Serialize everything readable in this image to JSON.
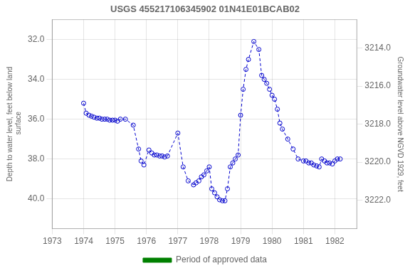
{
  "chart_data": {
    "type": "line",
    "title": "USGS 455217106345902 01N41E01BCAB02",
    "y_label": "Depth to water level, feet below land\n surface",
    "y2_label": "Groundwater level above NGVD 1929, feet",
    "legend": "bottom",
    "legend_label": "Period of approved data",
    "legend_color": "#008000",
    "grid": true,
    "xlim": [
      1973.0,
      1982.7
    ],
    "xticks": [
      1973,
      1974,
      1975,
      1976,
      1977,
      1978,
      1979,
      1980,
      1981,
      1982
    ],
    "ylim": [
      41.5,
      31.0
    ],
    "yticks": [
      {
        "value": 32.0,
        "label": "32.0"
      },
      {
        "value": 34.0,
        "label": "34.0"
      },
      {
        "value": 36.0,
        "label": "36.0"
      },
      {
        "value": 38.0,
        "label": "38.0"
      },
      {
        "value": 40.0,
        "label": "40.0"
      }
    ],
    "y2lim": [
      3223.5,
      3212.5
    ],
    "y2ticks": [
      {
        "value": 3214.0,
        "label": "3214.0"
      },
      {
        "value": 3216.0,
        "label": "3216.0"
      },
      {
        "value": 3218.0,
        "label": "3218.0"
      },
      {
        "value": 3220.0,
        "label": "3220.0"
      },
      {
        "value": 3222.0,
        "label": "3222.0"
      }
    ],
    "x": [
      1974.0,
      1974.08,
      1974.17,
      1974.25,
      1974.33,
      1974.42,
      1974.5,
      1974.58,
      1974.67,
      1974.75,
      1974.83,
      1974.92,
      1975.0,
      1975.08,
      1975.17,
      1975.33,
      1975.58,
      1975.75,
      1975.83,
      1975.92,
      1976.08,
      1976.17,
      1976.25,
      1976.33,
      1976.42,
      1976.5,
      1976.58,
      1976.67,
      1977.0,
      1977.17,
      1977.33,
      1977.5,
      1977.58,
      1977.67,
      1977.75,
      1977.83,
      1977.92,
      1978.0,
      1978.08,
      1978.17,
      1978.25,
      1978.33,
      1978.42,
      1978.5,
      1978.58,
      1978.67,
      1978.75,
      1978.83,
      1978.92,
      1979.0,
      1979.08,
      1979.17,
      1979.25,
      1979.42,
      1979.58,
      1979.67,
      1979.75,
      1979.83,
      1979.92,
      1980.0,
      1980.08,
      1980.17,
      1980.25,
      1980.33,
      1980.5,
      1980.67,
      1980.83,
      1981.0,
      1981.08,
      1981.17,
      1981.25,
      1981.33,
      1981.42,
      1981.5,
      1981.58,
      1981.67,
      1981.75,
      1981.83,
      1981.92,
      1982.0,
      1982.08,
      1982.17
    ],
    "series": [
      {
        "color": "#0000CD",
        "marker": "circle",
        "line_style": "dashed",
        "values": [
          35.2,
          35.7,
          35.8,
          35.85,
          35.9,
          35.95,
          35.95,
          36.0,
          36.0,
          36.0,
          36.05,
          36.05,
          36.05,
          36.1,
          36.0,
          36.0,
          36.3,
          37.5,
          38.1,
          38.3,
          37.55,
          37.7,
          37.8,
          37.8,
          37.85,
          37.85,
          37.9,
          37.85,
          36.7,
          38.4,
          39.1,
          39.3,
          39.2,
          39.1,
          38.9,
          38.8,
          38.6,
          38.4,
          39.5,
          39.7,
          39.9,
          40.05,
          40.1,
          40.1,
          39.5,
          38.4,
          38.2,
          38.0,
          37.8,
          35.8,
          34.5,
          33.5,
          33.0,
          32.1,
          32.5,
          33.8,
          34.0,
          34.2,
          34.5,
          34.8,
          35.0,
          35.5,
          36.2,
          36.5,
          37.0,
          37.5,
          38.0,
          38.1,
          38.1,
          38.2,
          38.2,
          38.3,
          38.35,
          38.4,
          38.0,
          38.1,
          38.2,
          38.2,
          38.25,
          38.1,
          38.0,
          38.0
        ]
      }
    ]
  }
}
